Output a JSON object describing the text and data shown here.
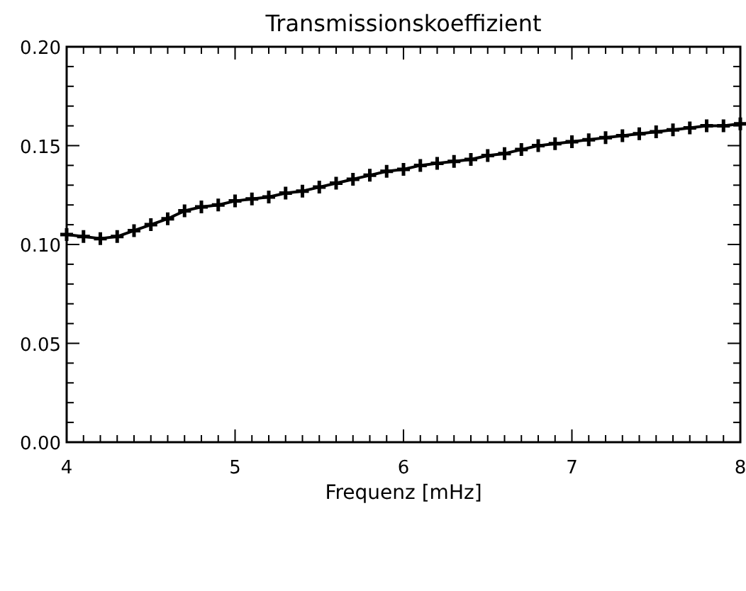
{
  "chart_data": {
    "type": "line",
    "title": "Transmissionskoeffizient",
    "xlabel": "Frequenz [mHz]",
    "x": [
      4.0,
      4.1,
      4.2,
      4.3,
      4.4,
      4.5,
      4.6,
      4.7,
      4.8,
      4.9,
      5.0,
      5.1,
      5.2,
      5.3,
      5.4,
      5.5,
      5.6,
      5.7,
      5.8,
      5.9,
      6.0,
      6.1,
      6.2,
      6.3,
      6.4,
      6.5,
      6.6,
      6.7,
      6.8,
      6.9,
      7.0,
      7.1,
      7.2,
      7.3,
      7.4,
      7.5,
      7.6,
      7.7,
      7.8,
      7.9,
      8.0
    ],
    "series": [
      {
        "color": "#000000",
        "values": [
          0.105,
          0.104,
          0.103,
          0.104,
          0.107,
          0.11,
          0.113,
          0.117,
          0.119,
          0.12,
          0.122,
          0.123,
          0.124,
          0.126,
          0.127,
          0.129,
          0.131,
          0.133,
          0.135,
          0.137,
          0.138,
          0.14,
          0.141,
          0.142,
          0.143,
          0.145,
          0.146,
          0.148,
          0.15,
          0.151,
          0.152,
          0.153,
          0.154,
          0.155,
          0.156,
          0.157,
          0.158,
          0.159,
          0.16,
          0.16,
          0.161
        ]
      }
    ],
    "xlim": [
      4,
      8
    ],
    "ylim": [
      0,
      0.2
    ],
    "xticks": [
      4,
      {
        "value": 4.1,
        "label": null
      },
      {
        "value": 4.2,
        "label": null
      },
      {
        "value": 4.3,
        "label": null
      },
      {
        "value": 4.4,
        "label": null
      },
      {
        "value": 4.5,
        "label": null
      },
      {
        "value": 4.6,
        "label": null
      },
      {
        "value": 4.7,
        "label": null
      },
      {
        "value": 4.8,
        "label": null
      },
      {
        "value": 4.9,
        "label": null
      },
      5,
      {
        "value": 5.1,
        "label": null
      },
      {
        "value": 5.2,
        "label": null
      },
      {
        "value": 5.3,
        "label": null
      },
      {
        "value": 5.4,
        "label": null
      },
      {
        "value": 5.5,
        "label": null
      },
      {
        "value": 5.6,
        "label": null
      },
      {
        "value": 5.7,
        "label": null
      },
      {
        "value": 5.8,
        "label": null
      },
      {
        "value": 5.9,
        "label": null
      },
      6,
      {
        "value": 6.1,
        "label": null
      },
      {
        "value": 6.2,
        "label": null
      },
      {
        "value": 6.3,
        "label": null
      },
      {
        "value": 6.4,
        "label": null
      },
      {
        "value": 6.5,
        "label": null
      },
      {
        "value": 6.6,
        "label": null
      },
      {
        "value": 6.7,
        "label": null
      },
      {
        "value": 6.8,
        "label": null
      },
      {
        "value": 6.9,
        "label": null
      },
      7,
      {
        "value": 7.1,
        "label": null
      },
      {
        "value": 7.2,
        "label": null
      },
      {
        "value": 7.3,
        "label": null
      },
      {
        "value": 7.4,
        "label": null
      },
      {
        "value": 7.5,
        "label": null
      },
      {
        "value": 7.6,
        "label": null
      },
      {
        "value": 7.7,
        "label": null
      },
      {
        "value": 7.8,
        "label": null
      },
      {
        "value": 7.9,
        "label": null
      },
      8
    ],
    "yticks": [
      {
        "value": 0,
        "label": "0.00"
      },
      {
        "value": 0.01,
        "label": null
      },
      {
        "value": 0.02,
        "label": null
      },
      {
        "value": 0.03,
        "label": null
      },
      {
        "value": 0.04,
        "label": null
      },
      {
        "value": 0.05,
        "label": "0.05"
      },
      {
        "value": 0.06,
        "label": null
      },
      {
        "value": 0.07,
        "label": null
      },
      {
        "value": 0.08,
        "label": null
      },
      {
        "value": 0.09,
        "label": null
      },
      {
        "value": 0.1,
        "label": "0.10"
      },
      {
        "value": 0.11,
        "label": null
      },
      {
        "value": 0.12,
        "label": null
      },
      {
        "value": 0.13,
        "label": null
      },
      {
        "value": 0.14,
        "label": null
      },
      {
        "value": 0.15,
        "label": "0.15"
      },
      {
        "value": 0.16,
        "label": null
      },
      {
        "value": 0.17,
        "label": null
      },
      {
        "value": 0.18,
        "label": null
      },
      {
        "value": 0.19,
        "label": null
      },
      {
        "value": 0.2,
        "label": "0.20"
      }
    ],
    "marker": "cross",
    "line_style": "solid"
  }
}
